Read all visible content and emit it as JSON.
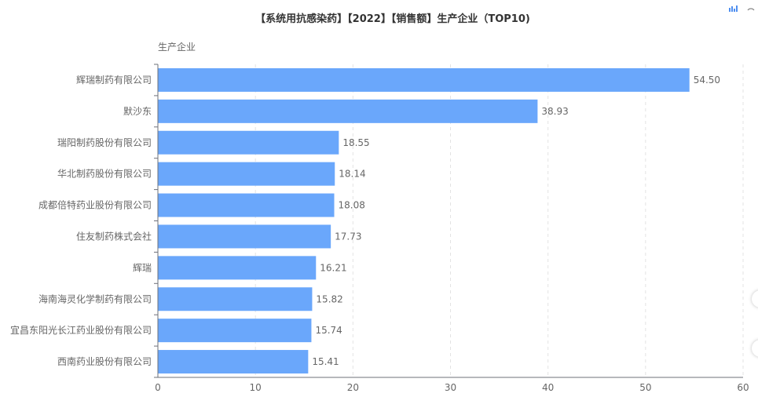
{
  "chart_data": {
    "type": "bar",
    "orientation": "horizontal",
    "title": "【系统用抗感染药】【2022】【销售额】生产企业（TOP10)",
    "ylabel": "生产企业",
    "xlabel": "",
    "categories": [
      "辉瑞制药有限公司",
      "默沙东",
      "瑞阳制药股份有限公司",
      "华北制药股份有限公司",
      "成都倍特药业股份有限公司",
      "住友制药株式会社",
      "辉瑞",
      "海南海灵化学制药有限公司",
      "宜昌东阳光长江药业股份有限公司",
      "西南药业股份有限公司"
    ],
    "values": [
      54.5,
      38.93,
      18.55,
      18.14,
      18.08,
      17.73,
      16.21,
      15.82,
      15.74,
      15.41
    ],
    "value_labels": [
      "54.50",
      "38.93",
      "18.55",
      "18.14",
      "18.08",
      "17.73",
      "16.21",
      "15.82",
      "15.74",
      "15.41"
    ],
    "xlim": [
      0,
      60
    ],
    "x_ticks": [
      "0",
      "10",
      "20",
      "30",
      "40",
      "50",
      "60"
    ],
    "grid": "vertical dashed",
    "bar_color": "#6aa7fb",
    "legend": "none"
  },
  "toolbar": {
    "icons": [
      "bar-chart-icon",
      "refresh-icon"
    ]
  }
}
